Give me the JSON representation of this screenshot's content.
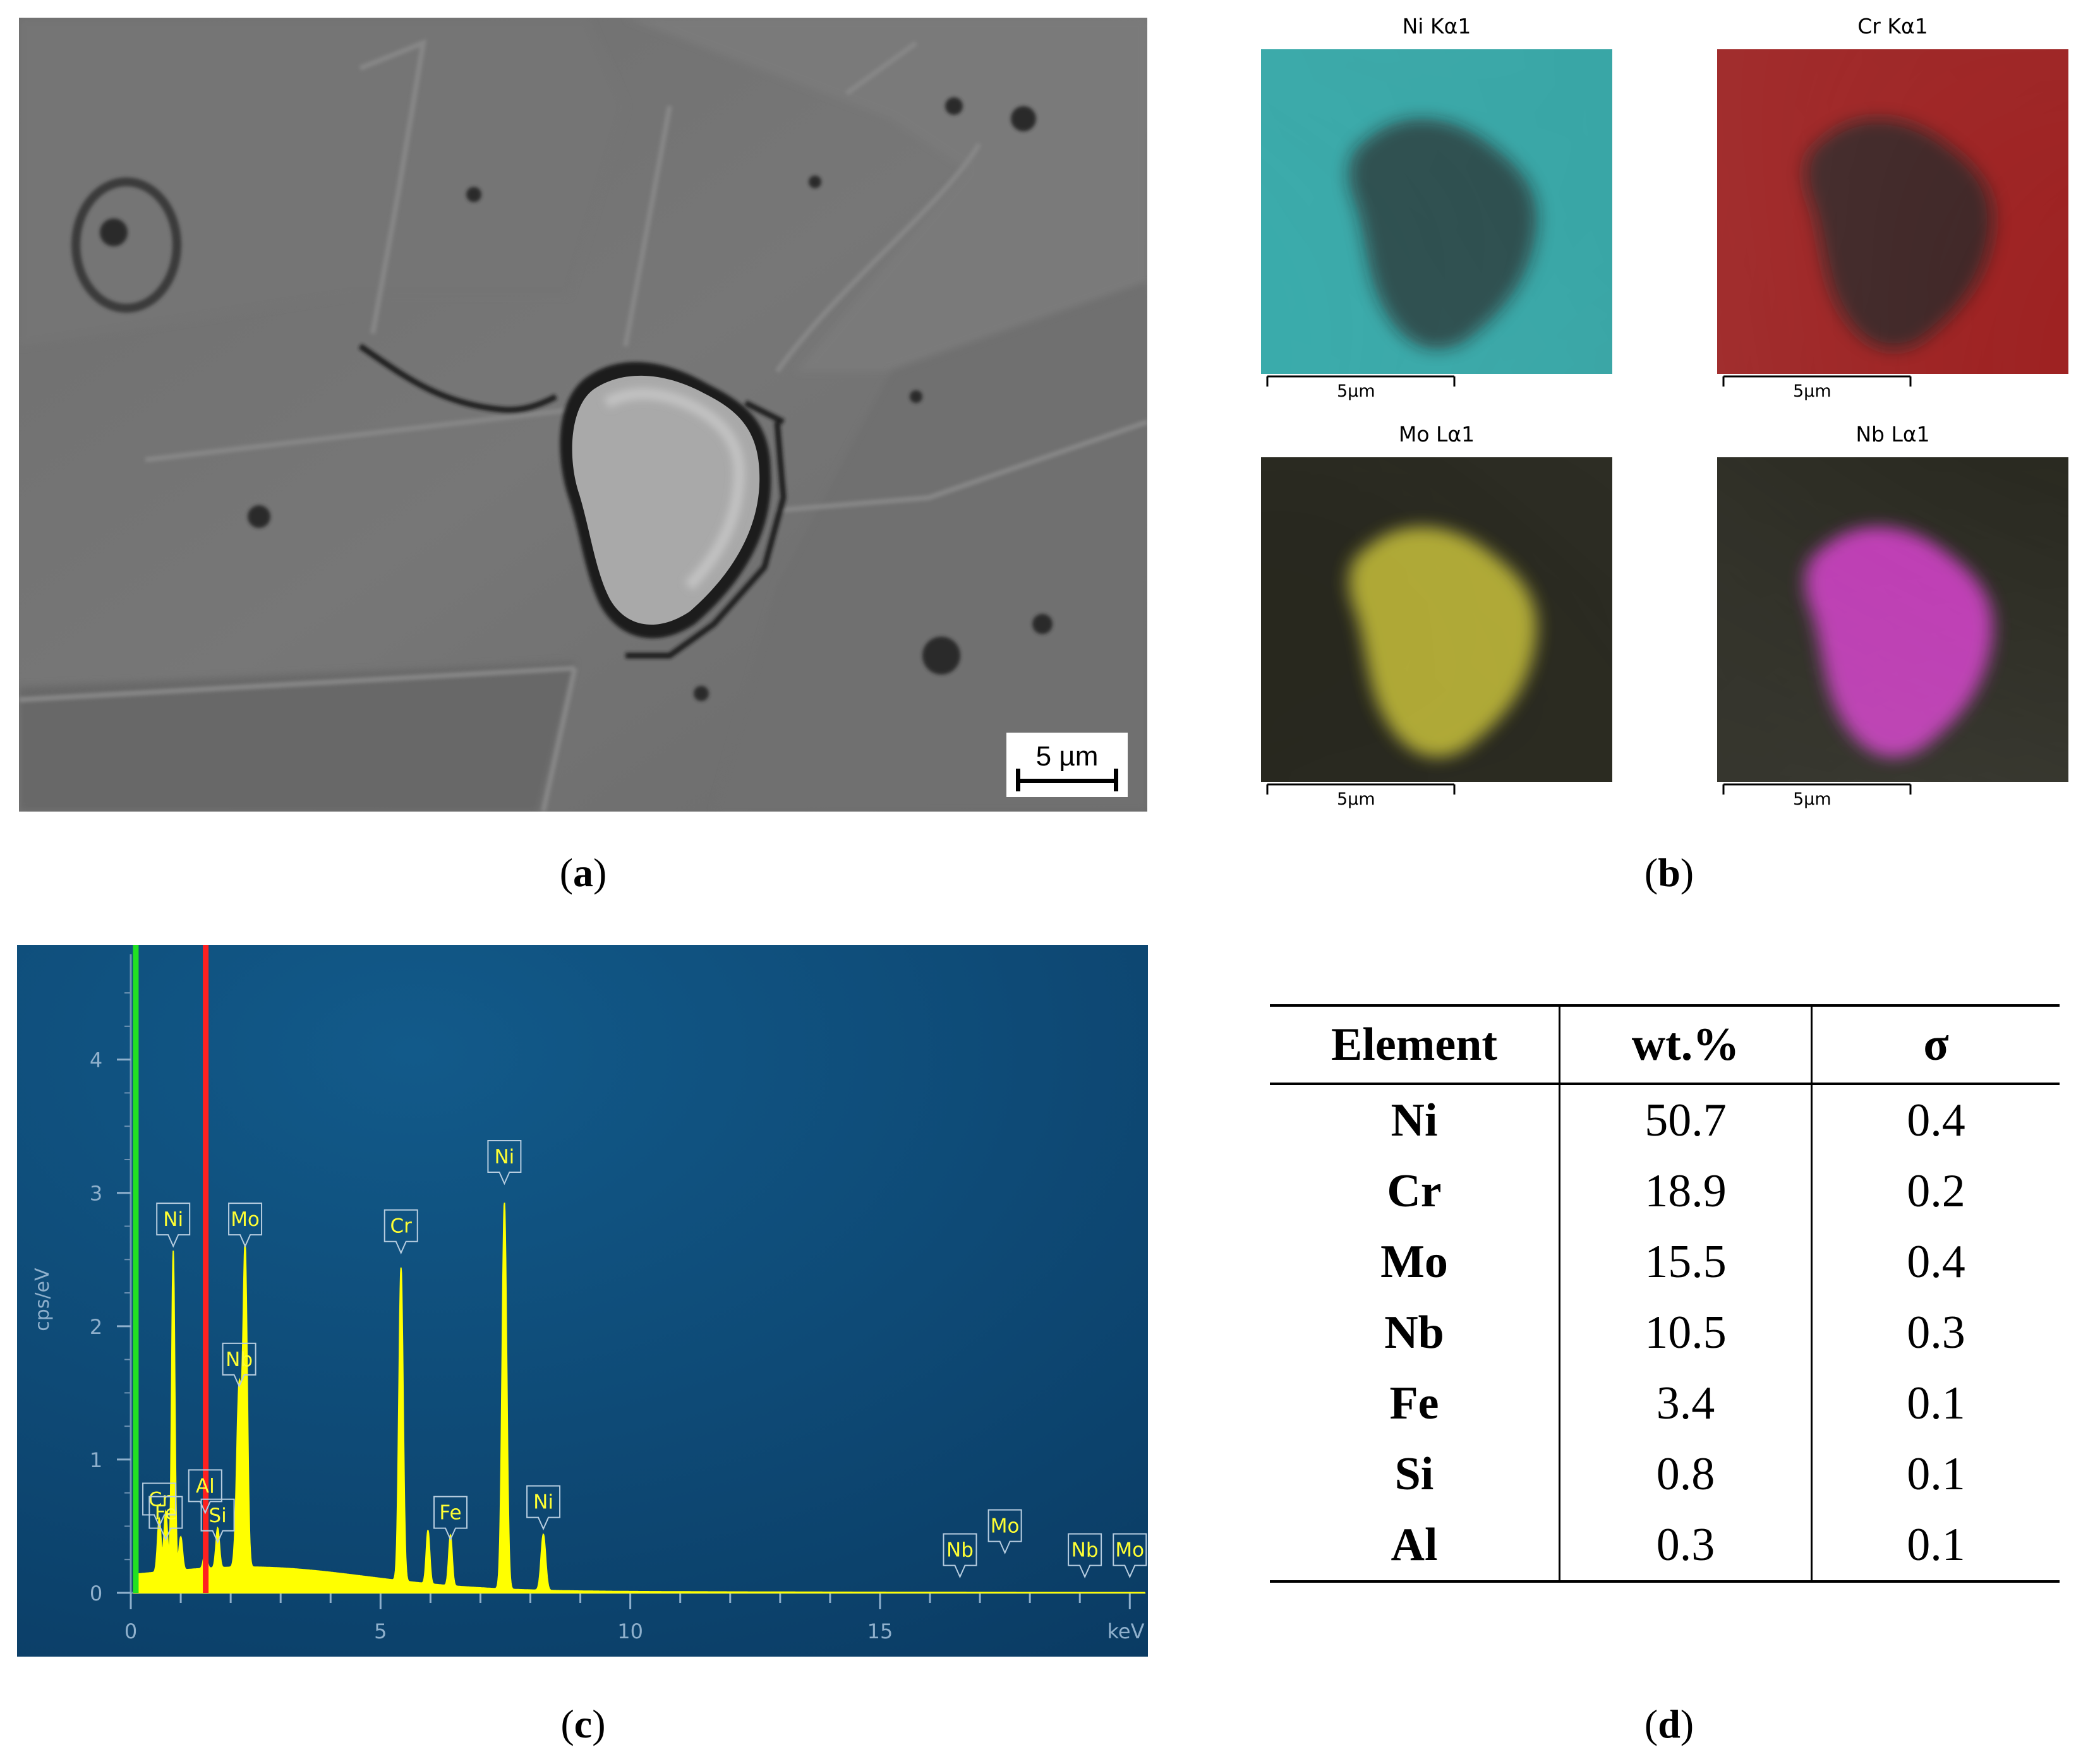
{
  "panel_a": {
    "caption": "a",
    "scale_bar": "5 µm"
  },
  "panel_b": {
    "caption": "b",
    "maps": [
      {
        "title": "Ni Kα1",
        "scale": "5µm",
        "color": "#1fa6a6"
      },
      {
        "title": "Cr Kα1",
        "scale": "5µm",
        "color": "#9a1010"
      },
      {
        "title": "Mo Lα1",
        "scale": "5µm",
        "color": "#b8b020"
      },
      {
        "title": "Nb Lα1",
        "scale": "5µm",
        "color": "#cc28c0"
      }
    ]
  },
  "panel_c": {
    "caption": "c"
  },
  "panel_d": {
    "caption": "d",
    "headers": [
      "Element",
      "wt.%",
      "σ"
    ],
    "rows": [
      [
        "Ni",
        "50.7",
        "0.4"
      ],
      [
        "Cr",
        "18.9",
        "0.2"
      ],
      [
        "Mo",
        "15.5",
        "0.4"
      ],
      [
        "Nb",
        "10.5",
        "0.3"
      ],
      [
        "Fe",
        "3.4",
        "0.1"
      ],
      [
        "Si",
        "0.8",
        "0.1"
      ],
      [
        "Al",
        "0.3",
        "0.1"
      ]
    ]
  },
  "chart_data": [
    {
      "type": "line",
      "xlabel": "keV",
      "ylabel": "cps/eV",
      "xlim": [
        0,
        20.3
      ],
      "ylim": [
        0,
        4.6
      ],
      "x_ticks": [
        0,
        5,
        10,
        15
      ],
      "y_ticks": [
        0,
        1,
        2,
        3,
        4
      ],
      "background_color": "#0d4a78",
      "line_color": "#ffff00",
      "markers": [
        {
          "name": "green",
          "x": 0.1,
          "color": "#22e022"
        },
        {
          "name": "red",
          "x": 1.5,
          "color": "#ff2020"
        }
      ],
      "peaks": [
        {
          "x": 0.57,
          "y": 0.4,
          "w": 0.05
        },
        {
          "x": 0.7,
          "y": 0.45,
          "w": 0.05
        },
        {
          "x": 0.85,
          "y": 2.4,
          "w": 0.045
        },
        {
          "x": 1.0,
          "y": 0.25,
          "w": 0.05
        },
        {
          "x": 1.49,
          "y": 0.12,
          "w": 0.05
        },
        {
          "x": 1.74,
          "y": 0.3,
          "w": 0.05
        },
        {
          "x": 2.17,
          "y": 1.35,
          "w": 0.07
        },
        {
          "x": 2.29,
          "y": 2.35,
          "w": 0.06
        },
        {
          "x": 5.41,
          "y": 2.35,
          "w": 0.06
        },
        {
          "x": 5.95,
          "y": 0.4,
          "w": 0.05
        },
        {
          "x": 6.4,
          "y": 0.38,
          "w": 0.05
        },
        {
          "x": 7.48,
          "y": 2.9,
          "w": 0.065
        },
        {
          "x": 8.26,
          "y": 0.42,
          "w": 0.065
        }
      ],
      "peak_labels": [
        {
          "text": "Cr",
          "x": 0.57,
          "y": 0.5
        },
        {
          "text": "Fe",
          "x": 0.7,
          "y": 0.4
        },
        {
          "text": "Ni",
          "x": 0.85,
          "y": 2.6
        },
        {
          "text": "Al",
          "x": 1.49,
          "y": 0.6
        },
        {
          "text": "Si",
          "x": 1.74,
          "y": 0.38
        },
        {
          "text": "Nb",
          "x": 2.17,
          "y": 1.55
        },
        {
          "text": "Mo",
          "x": 2.29,
          "y": 2.6
        },
        {
          "text": "Cr",
          "x": 5.41,
          "y": 2.55
        },
        {
          "text": "Fe",
          "x": 6.4,
          "y": 0.4
        },
        {
          "text": "Ni",
          "x": 7.48,
          "y": 3.07
        },
        {
          "text": "Ni",
          "x": 8.26,
          "y": 0.48
        },
        {
          "text": "Nb",
          "x": 16.6,
          "y": 0.12
        },
        {
          "text": "Mo",
          "x": 17.5,
          "y": 0.3
        },
        {
          "text": "Nb",
          "x": 19.1,
          "y": 0.12
        },
        {
          "text": "Mo",
          "x": 20.0,
          "y": 0.12
        }
      ]
    },
    {
      "type": "table",
      "columns": [
        "Element",
        "wt.%",
        "σ"
      ],
      "rows": [
        [
          "Ni",
          50.7,
          0.4
        ],
        [
          "Cr",
          18.9,
          0.2
        ],
        [
          "Mo",
          15.5,
          0.4
        ],
        [
          "Nb",
          10.5,
          0.3
        ],
        [
          "Fe",
          3.4,
          0.1
        ],
        [
          "Si",
          0.8,
          0.1
        ],
        [
          "Al",
          0.3,
          0.1
        ]
      ]
    }
  ]
}
